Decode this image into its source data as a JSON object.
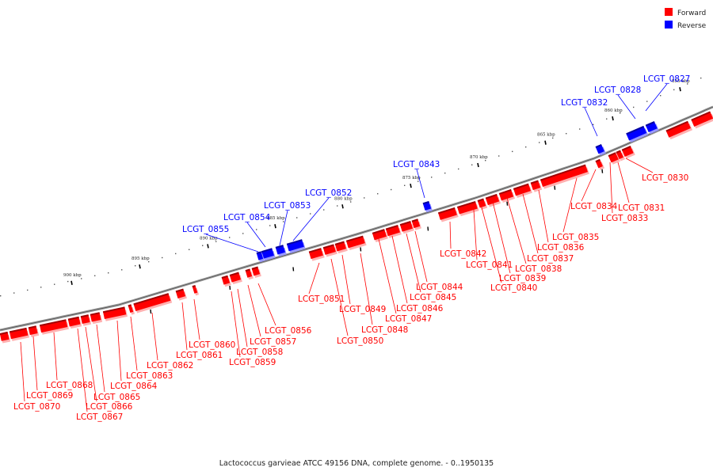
{
  "title": "Lactococcus garvieae ATCC 49156 DNA, complete genome. - 0..1950135",
  "legend": [
    {
      "label": "Forward",
      "color": "#ff0000"
    },
    {
      "label": "Reverse",
      "color": "#0000ff"
    }
  ],
  "colors": {
    "forward": "#ff0000",
    "reverse": "#0000ff",
    "backbone": "#888888"
  },
  "scale_labels": [
    "855 kbp",
    "860 kbp",
    "865 kbp",
    "870 kbp",
    "875 kbp",
    "880 kbp",
    "885 kbp",
    "890 kbp",
    "895 kbp",
    "900 kbp"
  ],
  "genes": [
    {
      "name": "LCGT_0827",
      "strand": "reverse"
    },
    {
      "name": "LCGT_0828",
      "strand": "reverse"
    },
    {
      "name": "LCGT_0830",
      "strand": "forward"
    },
    {
      "name": "LCGT_0831",
      "strand": "forward"
    },
    {
      "name": "LCGT_0832",
      "strand": "reverse"
    },
    {
      "name": "LCGT_0833",
      "strand": "forward"
    },
    {
      "name": "LCGT_0834",
      "strand": "forward"
    },
    {
      "name": "LCGT_0835",
      "strand": "forward"
    },
    {
      "name": "LCGT_0836",
      "strand": "forward"
    },
    {
      "name": "LCGT_0837",
      "strand": "forward"
    },
    {
      "name": "LCGT_0838",
      "strand": "forward"
    },
    {
      "name": "LCGT_0839",
      "strand": "forward"
    },
    {
      "name": "LCGT_0840",
      "strand": "forward"
    },
    {
      "name": "LCGT_0841",
      "strand": "forward"
    },
    {
      "name": "LCGT_0842",
      "strand": "forward"
    },
    {
      "name": "LCGT_0843",
      "strand": "reverse"
    },
    {
      "name": "LCGT_0844",
      "strand": "forward"
    },
    {
      "name": "LCGT_0845",
      "strand": "forward"
    },
    {
      "name": "LCGT_0846",
      "strand": "forward"
    },
    {
      "name": "LCGT_0847",
      "strand": "forward"
    },
    {
      "name": "LCGT_0848",
      "strand": "forward"
    },
    {
      "name": "LCGT_0849",
      "strand": "forward"
    },
    {
      "name": "LCGT_0850",
      "strand": "forward"
    },
    {
      "name": "LCGT_0851",
      "strand": "forward"
    },
    {
      "name": "LCGT_0852",
      "strand": "reverse"
    },
    {
      "name": "LCGT_0853",
      "strand": "reverse"
    },
    {
      "name": "LCGT_0854",
      "strand": "reverse"
    },
    {
      "name": "LCGT_0855",
      "strand": "reverse"
    },
    {
      "name": "LCGT_0856",
      "strand": "forward"
    },
    {
      "name": "LCGT_0857",
      "strand": "forward"
    },
    {
      "name": "LCGT_0858",
      "strand": "forward"
    },
    {
      "name": "LCGT_0859",
      "strand": "forward"
    },
    {
      "name": "LCGT_0860",
      "strand": "forward"
    },
    {
      "name": "LCGT_0861",
      "strand": "forward"
    },
    {
      "name": "LCGT_0862",
      "strand": "forward"
    },
    {
      "name": "LCGT_0863",
      "strand": "forward"
    },
    {
      "name": "LCGT_0864",
      "strand": "forward"
    },
    {
      "name": "LCGT_0865",
      "strand": "forward"
    },
    {
      "name": "LCGT_0866",
      "strand": "forward"
    },
    {
      "name": "LCGT_0867",
      "strand": "forward"
    },
    {
      "name": "LCGT_0868",
      "strand": "forward"
    },
    {
      "name": "LCGT_0869",
      "strand": "forward"
    },
    {
      "name": "LCGT_0870",
      "strand": "forward"
    }
  ]
}
